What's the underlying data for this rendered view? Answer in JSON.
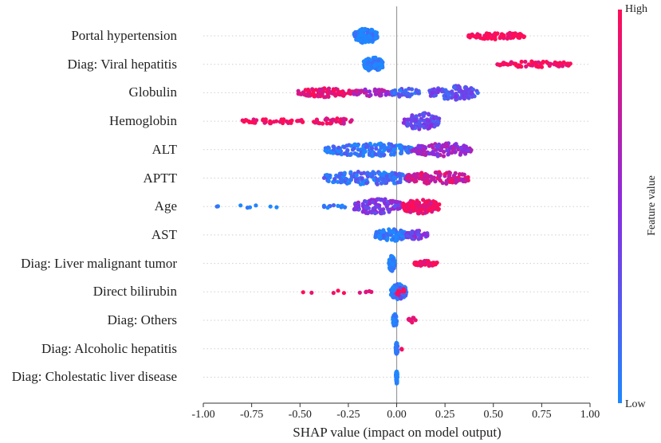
{
  "chart_data": {
    "type": "scatter",
    "subtype": "shap-beeswarm",
    "xlabel": "SHAP value (impact on model output)",
    "xlim": [
      -1.0,
      1.0
    ],
    "xticks": [
      "-1.00",
      "-0.75",
      "-0.50",
      "-0.25",
      "0.00",
      "0.25",
      "0.50",
      "0.75",
      "1.00"
    ],
    "xtick_values": [
      -1.0,
      -0.75,
      -0.5,
      -0.25,
      0.0,
      0.25,
      0.5,
      0.75,
      1.0
    ],
    "colorbar": {
      "title": "Feature value",
      "high_label": "High",
      "low_label": "Low",
      "low_color": "#1e88ff",
      "mid_color": "#8a2be2",
      "high_color": "#ff0d57"
    },
    "features": [
      {
        "name": "Portal hypertension",
        "clusters": [
          {
            "min": -0.22,
            "max": -0.1,
            "n": 140,
            "spread": 0.85,
            "color": 0.0
          },
          {
            "min": 0.37,
            "max": 0.66,
            "n": 75,
            "spread": 0.4,
            "color": 1.0
          }
        ]
      },
      {
        "name": "Diag: Viral hepatitis",
        "clusters": [
          {
            "min": -0.17,
            "max": -0.07,
            "n": 120,
            "spread": 0.8,
            "color": 0.0
          },
          {
            "min": 0.52,
            "max": 0.91,
            "n": 80,
            "spread": 0.35,
            "color": 1.0
          }
        ]
      },
      {
        "name": "Globulin",
        "clusters": [
          {
            "min": -0.51,
            "max": -0.23,
            "n": 90,
            "spread": 0.5,
            "color": 0.9
          },
          {
            "min": -0.23,
            "max": -0.03,
            "n": 50,
            "spread": 0.4,
            "color": 0.65
          },
          {
            "min": -0.03,
            "max": 0.12,
            "n": 40,
            "spread": 0.5,
            "color": 0.2
          },
          {
            "min": 0.17,
            "max": 0.42,
            "n": 110,
            "spread": 0.8,
            "color": 0.3
          }
        ]
      },
      {
        "name": "Hemoglobin",
        "clusters": [
          {
            "min": -0.8,
            "max": -0.47,
            "n": 40,
            "spread": 0.25,
            "color": 1.0
          },
          {
            "min": -0.43,
            "max": -0.23,
            "n": 40,
            "spread": 0.35,
            "color": 0.9
          },
          {
            "min": 0.03,
            "max": 0.22,
            "n": 110,
            "spread": 0.95,
            "color": 0.35
          }
        ]
      },
      {
        "name": "ALT",
        "clusters": [
          {
            "min": -0.37,
            "max": 0.08,
            "n": 150,
            "spread": 0.75,
            "color": 0.1
          },
          {
            "min": 0.08,
            "max": 0.39,
            "n": 120,
            "spread": 0.75,
            "color": 0.55
          }
        ]
      },
      {
        "name": "APTT",
        "clusters": [
          {
            "min": -0.38,
            "max": 0.08,
            "n": 160,
            "spread": 0.75,
            "color": 0.15
          },
          {
            "min": 0.05,
            "max": 0.37,
            "n": 110,
            "spread": 0.75,
            "color": 0.8
          }
        ]
      },
      {
        "name": "Age",
        "clusters": [
          {
            "min": -0.93,
            "max": -0.54,
            "n": 8,
            "spread": 0.15,
            "color": 0.0
          },
          {
            "min": -0.38,
            "max": -0.25,
            "n": 12,
            "spread": 0.2,
            "color": 0.05
          },
          {
            "min": -0.22,
            "max": 0.03,
            "n": 110,
            "spread": 0.9,
            "color": 0.45
          },
          {
            "min": 0.03,
            "max": 0.22,
            "n": 110,
            "spread": 0.85,
            "color": 0.92
          }
        ]
      },
      {
        "name": "AST",
        "clusters": [
          {
            "min": -0.11,
            "max": 0.05,
            "n": 130,
            "spread": 0.7,
            "color": 0.05
          },
          {
            "min": 0.05,
            "max": 0.16,
            "n": 50,
            "spread": 0.5,
            "color": 0.45
          }
        ]
      },
      {
        "name": "Diag: Liver malignant tumor",
        "clusters": [
          {
            "min": -0.04,
            "max": -0.01,
            "n": 80,
            "spread": 0.9,
            "color": 0.0
          },
          {
            "min": 0.09,
            "max": 0.21,
            "n": 45,
            "spread": 0.3,
            "color": 1.0
          }
        ]
      },
      {
        "name": "Direct bilirubin",
        "clusters": [
          {
            "min": -0.52,
            "max": -0.12,
            "n": 10,
            "spread": 0.15,
            "color": 1.0
          },
          {
            "min": -0.03,
            "max": 0.05,
            "n": 120,
            "spread": 0.9,
            "color": 0.15
          },
          {
            "min": 0.0,
            "max": 0.04,
            "n": 10,
            "spread": 0.5,
            "color": 0.9
          }
        ]
      },
      {
        "name": "Diag: Others",
        "clusters": [
          {
            "min": -0.02,
            "max": 0.0,
            "n": 60,
            "spread": 0.75,
            "color": 0.0
          },
          {
            "min": 0.06,
            "max": 0.1,
            "n": 12,
            "spread": 0.3,
            "color": 1.0
          }
        ]
      },
      {
        "name": "Diag: Alcoholic hepatitis",
        "clusters": [
          {
            "min": -0.005,
            "max": 0.005,
            "n": 50,
            "spread": 0.75,
            "color": 0.0
          },
          {
            "min": 0.025,
            "max": 0.03,
            "n": 3,
            "spread": 0.1,
            "color": 1.0
          }
        ]
      },
      {
        "name": "Diag: Cholestatic liver disease",
        "clusters": [
          {
            "min": -0.004,
            "max": 0.004,
            "n": 50,
            "spread": 0.75,
            "color": 0.0
          }
        ]
      }
    ]
  }
}
